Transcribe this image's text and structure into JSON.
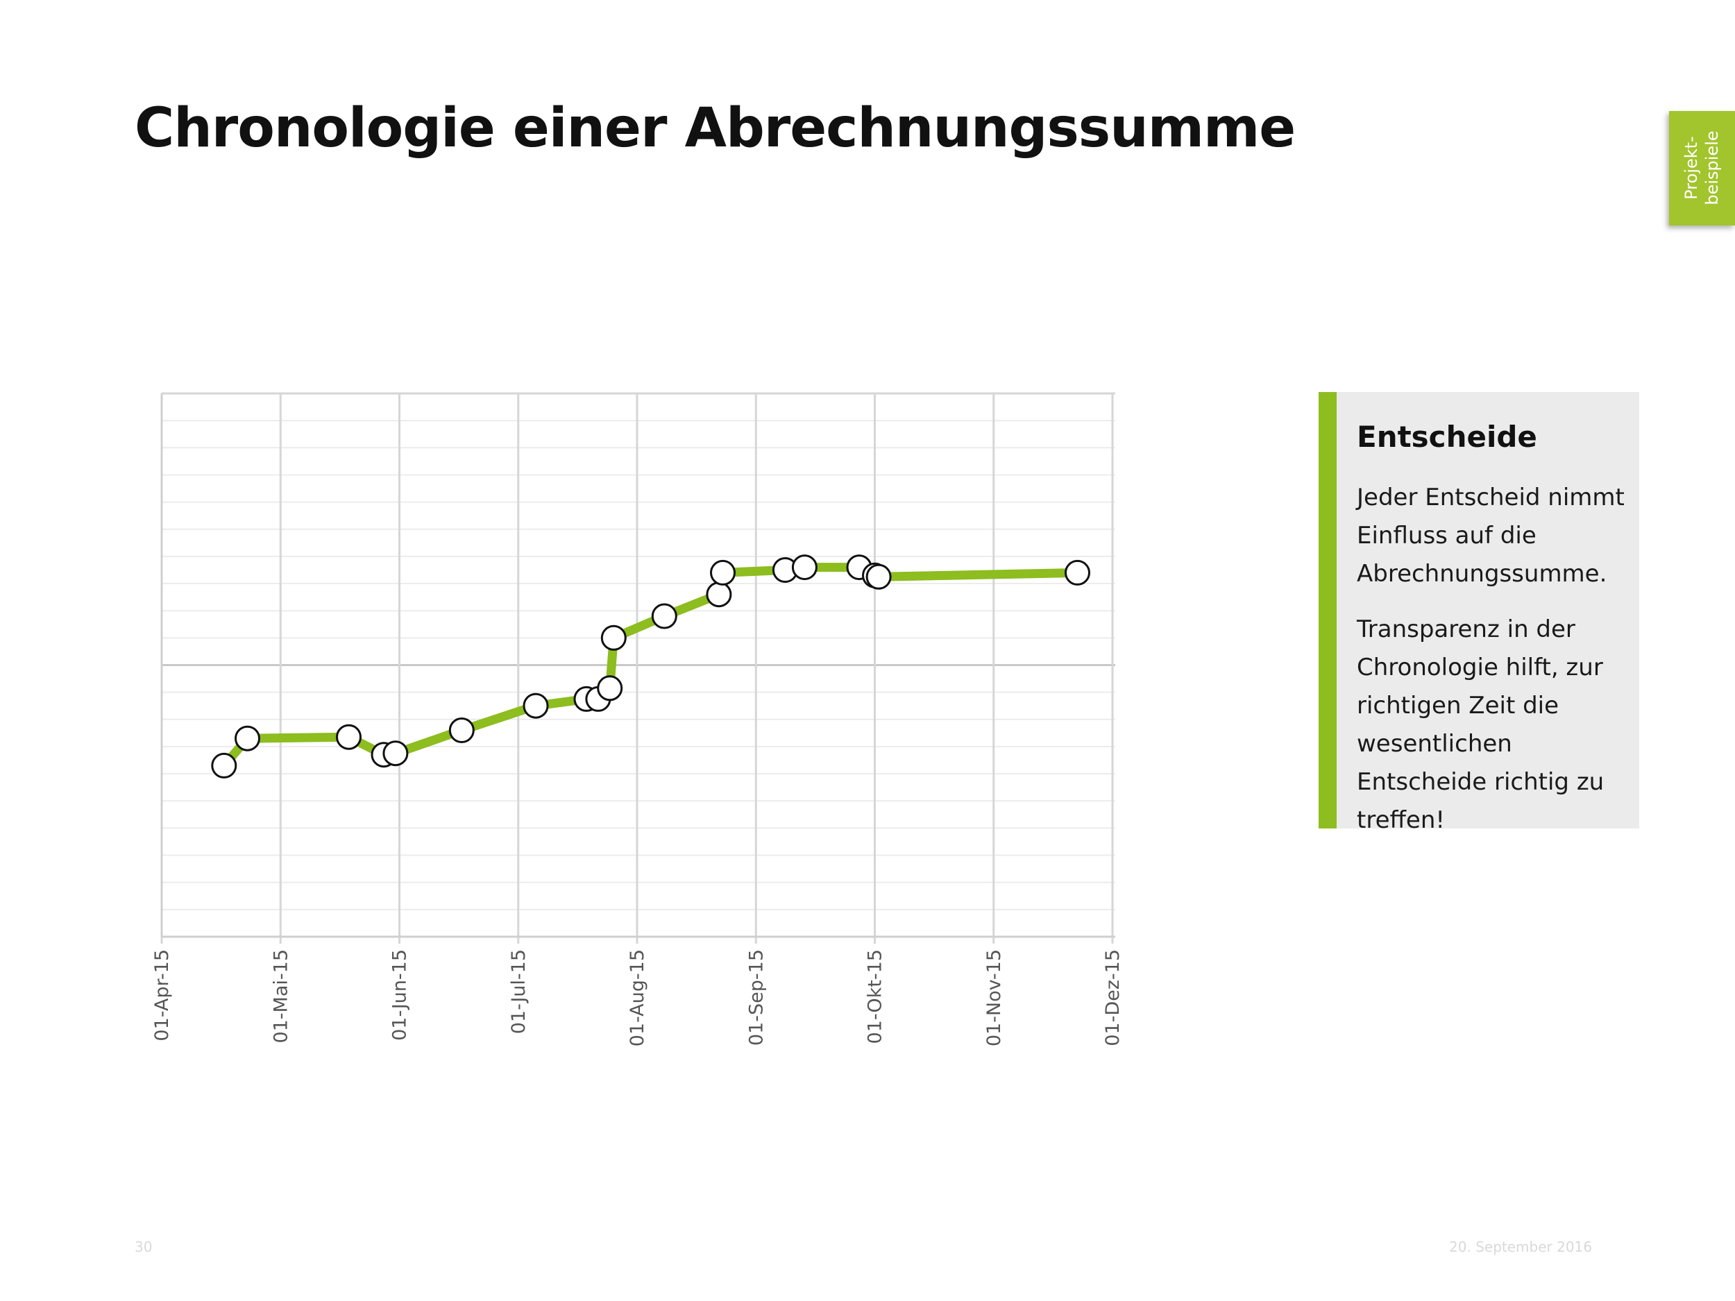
{
  "title": "Chronologie einer Abrechnungssumme",
  "side_tab": {
    "line1": "Projekt-",
    "line2": "beispiele",
    "color": "#a2c42d"
  },
  "info_box": {
    "heading": "Entscheide",
    "paragraph1": "Jeder Entscheid nimmt Einfluss auf die Abrechnungssumme.",
    "paragraph2": "Transparenz in der Chronologie hilft, zur richtigen Zeit die wesentlichen Entscheide richtig zu treffen!",
    "accent_color": "#8dbd1f",
    "background_color": "#ebebeb"
  },
  "footer": {
    "page_number": "30",
    "date": "20. September 2016"
  },
  "chart_data": {
    "type": "line",
    "title": "",
    "xlabel": "",
    "ylabel": "",
    "x_ticks": [
      "01-Apr-15",
      "01-Mai-15",
      "01-Jun-15",
      "01-Jul-15",
      "01-Aug-15",
      "01-Sep-15",
      "01-Okt-15",
      "01-Nov-15",
      "01-Dez-15"
    ],
    "x_range": [
      "2015-04-01",
      "2015-12-01"
    ],
    "y_range": [
      0,
      20
    ],
    "y_tick_labels_shown": false,
    "grid": true,
    "legend": "none",
    "line_color": "#8dbd1f",
    "marker": "open circle",
    "series": [
      {
        "x": [
          "2015-04-17",
          "2015-04-23",
          "2015-05-19",
          "2015-05-28",
          "2015-05-31",
          "2015-06-17",
          "2015-07-06",
          "2015-07-19",
          "2015-07-22",
          "2015-07-25",
          "2015-07-26",
          "2015-08-08",
          "2015-08-22",
          "2015-08-23",
          "2015-09-08",
          "2015-09-13",
          "2015-09-27",
          "2015-10-01",
          "2015-10-02",
          "2015-11-22"
        ],
        "y": [
          6.3,
          7.3,
          7.35,
          6.7,
          6.75,
          7.6,
          8.5,
          8.75,
          8.75,
          9.15,
          11.0,
          11.8,
          12.6,
          13.4,
          13.5,
          13.6,
          13.6,
          13.3,
          13.25,
          13.4
        ]
      }
    ]
  }
}
